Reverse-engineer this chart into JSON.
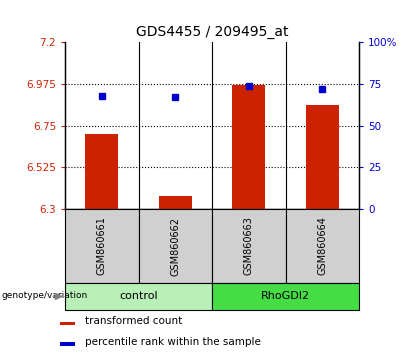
{
  "title": "GDS4455 / 209495_at",
  "samples": [
    "GSM860661",
    "GSM860662",
    "GSM860663",
    "GSM860664"
  ],
  "bar_values": [
    6.703,
    6.372,
    6.972,
    6.862
  ],
  "percentile_values": [
    68,
    67,
    74,
    72
  ],
  "group_light_color": "#b8f0b8",
  "group_dark_color": "#44dd44",
  "ylim_left": [
    6.3,
    7.2
  ],
  "ylim_right": [
    0,
    100
  ],
  "yticks_left": [
    6.3,
    6.525,
    6.75,
    6.975,
    7.2
  ],
  "ytick_labels_left": [
    "6.3",
    "6.525",
    "6.75",
    "6.975",
    "7.2"
  ],
  "yticks_right": [
    0,
    25,
    50,
    75,
    100
  ],
  "ytick_labels_right": [
    "0",
    "25",
    "50",
    "75",
    "100%"
  ],
  "hline_values": [
    6.525,
    6.75,
    6.975
  ],
  "bar_color": "#cc2200",
  "dot_color": "#0000cc",
  "bar_width": 0.45,
  "legend_bar_label": "transformed count",
  "legend_dot_label": "percentile rank within the sample",
  "genotype_label": "genotype/variation",
  "sample_box_color": "#d0d0d0",
  "title_fontsize": 10,
  "tick_fontsize": 7.5,
  "legend_fontsize": 7.5,
  "sample_fontsize": 7
}
